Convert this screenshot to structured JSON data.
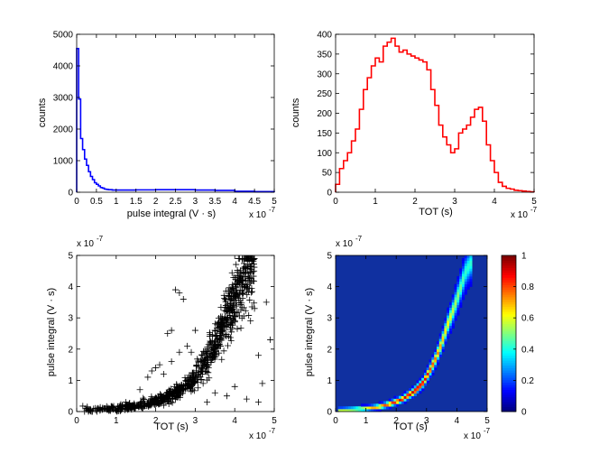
{
  "chart_data": [
    {
      "type": "histogram",
      "xlabel": "pulse integral (V · s)",
      "ylabel": "counts",
      "xlim": [
        0,
        5
      ],
      "ylim": [
        0,
        5000
      ],
      "x_multiplier": "x 10",
      "x_exponent": "-7",
      "xticks": [
        "0",
        "0.5",
        "1",
        "1.5",
        "2",
        "2.5",
        "3",
        "3.5",
        "4",
        "4.5",
        "5"
      ],
      "yticks": [
        "0",
        "1000",
        "2000",
        "3000",
        "4000",
        "5000"
      ],
      "color": "#0000ff",
      "bin_edges": [
        0,
        0.05,
        0.1,
        0.15,
        0.2,
        0.25,
        0.3,
        0.35,
        0.4,
        0.45,
        0.5,
        0.55,
        0.6,
        0.65,
        0.7,
        0.75,
        0.8,
        0.9,
        1.0,
        1.5,
        2.0,
        2.5,
        3.0,
        3.5,
        4.0,
        4.5,
        5.0
      ],
      "values": [
        4550,
        2950,
        1700,
        1350,
        1050,
        850,
        650,
        500,
        400,
        300,
        250,
        200,
        150,
        130,
        100,
        90,
        80,
        70,
        70,
        75,
        80,
        80,
        70,
        60,
        30,
        20
      ]
    },
    {
      "type": "histogram",
      "xlabel": "TOT (s)",
      "ylabel": "counts",
      "xlim": [
        0,
        5
      ],
      "ylim": [
        0,
        400
      ],
      "x_multiplier": "x 10",
      "x_exponent": "-7",
      "xticks": [
        "0",
        "1",
        "2",
        "3",
        "4",
        "5"
      ],
      "yticks": [
        "0",
        "50",
        "100",
        "150",
        "200",
        "250",
        "300",
        "350",
        "400"
      ],
      "color": "#ff0000",
      "bin_width": 0.1,
      "values": [
        20,
        60,
        80,
        100,
        130,
        160,
        210,
        260,
        290,
        320,
        340,
        330,
        370,
        380,
        390,
        370,
        355,
        360,
        350,
        345,
        340,
        335,
        330,
        310,
        260,
        220,
        170,
        140,
        120,
        100,
        110,
        150,
        160,
        170,
        190,
        210,
        215,
        180,
        120,
        80,
        50,
        25,
        15,
        10,
        8,
        5,
        4,
        3,
        2,
        1
      ]
    },
    {
      "type": "scatter",
      "xlabel": "TOT (s)",
      "ylabel": "pulse integral (V · s)",
      "xlim": [
        0,
        5
      ],
      "ylim": [
        0,
        5
      ],
      "x_multiplier": "x 10",
      "x_exponent": "-7",
      "y_multiplier": "x 10",
      "y_exponent": "-7",
      "xticks": [
        "0",
        "1",
        "2",
        "3",
        "4",
        "5"
      ],
      "yticks": [
        "0",
        "1",
        "2",
        "3",
        "4",
        "5"
      ],
      "marker": "+",
      "color": "#000000",
      "curve": {
        "x": [
          0.2,
          0.6,
          1.0,
          1.4,
          1.8,
          2.2,
          2.6,
          2.9,
          3.1,
          3.3,
          3.5,
          3.7,
          3.9,
          4.1,
          4.3,
          4.45
        ],
        "y": [
          0.05,
          0.07,
          0.1,
          0.15,
          0.25,
          0.4,
          0.65,
          0.95,
          1.3,
          1.7,
          2.2,
          2.8,
          3.3,
          3.9,
          4.5,
          4.75
        ]
      },
      "outliers": [
        [
          2.6,
          3.8
        ],
        [
          2.7,
          3.6
        ],
        [
          2.5,
          3.9
        ],
        [
          2.4,
          2.6
        ],
        [
          2.3,
          2.5
        ],
        [
          2.0,
          1.4
        ],
        [
          1.8,
          1.1
        ],
        [
          1.9,
          1.3
        ],
        [
          2.8,
          2.1
        ],
        [
          2.9,
          1.9
        ],
        [
          2.6,
          1.9
        ],
        [
          2.2,
          1.2
        ],
        [
          3.0,
          2.6
        ],
        [
          2.4,
          1.6
        ],
        [
          2.1,
          1.5
        ],
        [
          3.2,
          0.9
        ],
        [
          3.5,
          0.6
        ],
        [
          3.8,
          0.5
        ],
        [
          4.0,
          0.8
        ],
        [
          4.3,
          0.4
        ],
        [
          4.6,
          0.3
        ],
        [
          4.8,
          3.5
        ],
        [
          4.9,
          2.3
        ],
        [
          4.7,
          0.9
        ],
        [
          4.6,
          1.8
        ],
        [
          3.3,
          0.3
        ],
        [
          2.2,
          0.2
        ],
        [
          1.6,
          0.7
        ],
        [
          4.5,
          3.3
        ],
        [
          4.4,
          2.9
        ]
      ]
    },
    {
      "type": "heatmap",
      "xlabel": "TOT (s)",
      "ylabel": "pulse integral (V · s)",
      "xlim": [
        0,
        5
      ],
      "ylim": [
        0,
        5
      ],
      "x_multiplier": "x 10",
      "x_exponent": "-7",
      "y_multiplier": "x 10",
      "y_exponent": "-7",
      "xticks": [
        "0",
        "1",
        "2",
        "3",
        "4",
        "5"
      ],
      "yticks": [
        "0",
        "1",
        "2",
        "3",
        "4",
        "5"
      ],
      "background_color": "#1030a0",
      "colorbar_ticks": [
        "0",
        "0.2",
        "0.4",
        "0.6",
        "0.8",
        "1"
      ],
      "curve": {
        "x": [
          0.2,
          0.6,
          1.0,
          1.4,
          1.8,
          2.2,
          2.6,
          2.9,
          3.1,
          3.3,
          3.5,
          3.7,
          3.9,
          4.1,
          4.3,
          4.45
        ],
        "y": [
          0.05,
          0.07,
          0.1,
          0.15,
          0.25,
          0.4,
          0.65,
          0.95,
          1.3,
          1.7,
          2.2,
          2.8,
          3.3,
          3.9,
          4.5,
          4.75
        ]
      }
    }
  ]
}
